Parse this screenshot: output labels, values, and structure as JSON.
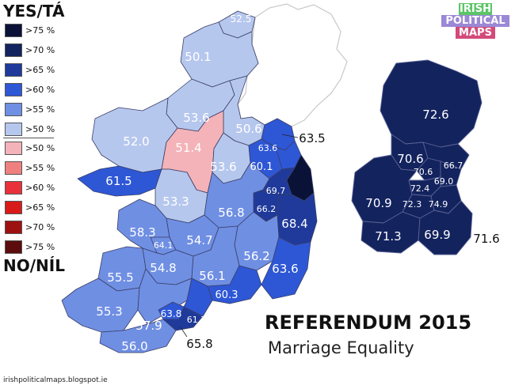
{
  "legend": {
    "yes_title": "YES/TÁ",
    "no_title": "NO/NÍL",
    "yes_items": [
      {
        "label": ">75 %",
        "color": "#0b1238"
      },
      {
        "label": ">70 %",
        "color": "#13235e"
      },
      {
        "label": ">65 %",
        "color": "#1f3a9a"
      },
      {
        "label": ">60 %",
        "color": "#2e57d6"
      },
      {
        "label": ">55 %",
        "color": "#6f8fe3"
      },
      {
        "label": ">50 %",
        "color": "#b6c7ee"
      }
    ],
    "no_items": [
      {
        "label": ">50 %",
        "color": "#f4b3b8"
      },
      {
        "label": ">55 %",
        "color": "#f08080"
      },
      {
        "label": ">60 %",
        "color": "#e8313a"
      },
      {
        "label": ">65 %",
        "color": "#d91a1a"
      },
      {
        "label": ">70 %",
        "color": "#9e1111"
      },
      {
        "label": ">75 %",
        "color": "#5c0c0c"
      }
    ]
  },
  "logo": {
    "line1": "IRISH",
    "line2": "POLITICAL",
    "line3": "MAPS"
  },
  "title": {
    "main": "REFERENDUM 2015",
    "sub": "Marriage Equality"
  },
  "source": "irishpoliticalmaps.blogspot.ie",
  "map_labels": {
    "donegal_ne": "52.5",
    "donegal": "50.1",
    "sligo_leitrim": "53.6",
    "cavan_monaghan": "50.6",
    "louth": "63.5",
    "mayo": "52.0",
    "roscommon": "51.4",
    "longford_westmeath": "53.6",
    "meath_east": "63.6",
    "meath_west": "60.1",
    "galway_west": "61.5",
    "galway_east": "53.3",
    "kildare_north": "69.7",
    "kildare_south": "66.2",
    "wicklow": "68.4",
    "offaly": "56.8",
    "clare": "58.3",
    "limerick_city": "64.1",
    "tipperary_north": "54.7",
    "carlow_kilkenny": "56.2",
    "kerry_north": "55.5",
    "limerick": "54.8",
    "tipperary_south": "56.1",
    "wexford": "63.6",
    "waterford": "60.3",
    "kerry_south": "55.3",
    "cork_nw": "57.9",
    "cork_nc": "63.8",
    "cork_sc": "61.7",
    "cork_sw": "56.0",
    "cork_se": "65.8"
  },
  "dublin_labels": {
    "fingal": "72.6",
    "dublin_nw": "70.6",
    "dublin_nc": "70.6",
    "dublin_ne": "66.7",
    "dublin_c": "72.4",
    "dublin_bay_n": "69.0",
    "dublin_w": "70.9",
    "dublin_sc": "72.3",
    "dublin_se": "74.9",
    "dublin_sw": "71.3",
    "dublin_s": "69.9",
    "dun_laoghaire": "71.6"
  }
}
